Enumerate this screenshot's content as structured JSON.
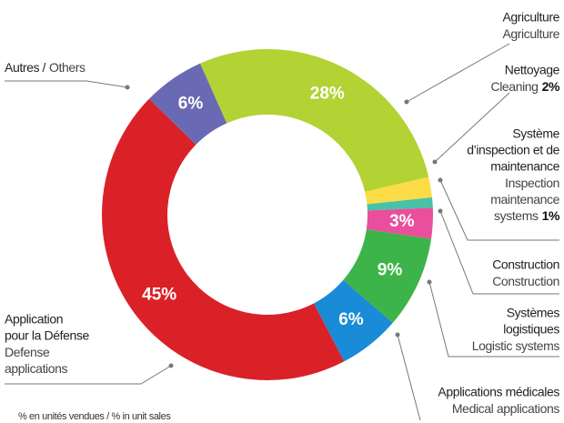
{
  "chart_data": {
    "type": "donut",
    "categories_fr": [
      [
        "Agriculture"
      ],
      [
        "Nettoyage"
      ],
      [
        "Système",
        "d’inspection et de",
        "maintenance"
      ],
      [
        "Construction"
      ],
      [
        "Systèmes",
        "logistiques"
      ],
      [
        "Applications médicales"
      ],
      [
        "Application",
        "pour la Défense"
      ],
      [
        "Autres /"
      ]
    ],
    "categories_en": [
      [
        "Agriculture"
      ],
      [
        "Cleaning"
      ],
      [
        "Inspection",
        "maintenance",
        "systems"
      ],
      [
        "Construction"
      ],
      [
        "Logistic systems"
      ],
      [
        "Medical applications"
      ],
      [
        "Defense",
        "applications"
      ],
      [
        "Others"
      ]
    ],
    "values": [
      28,
      2,
      1,
      3,
      9,
      6,
      45,
      6
    ],
    "value_labels": [
      "28%",
      "2%",
      "1%",
      "3%",
      "9%",
      "6%",
      "45%",
      "6%"
    ],
    "colors": [
      "#b3d234",
      "#fbdc46",
      "#46c2a8",
      "#ea4f9d",
      "#3db449",
      "#1a8bd6",
      "#da2128",
      "#6a6ab4"
    ],
    "note": "% en unités vendues / % in unit sales"
  }
}
